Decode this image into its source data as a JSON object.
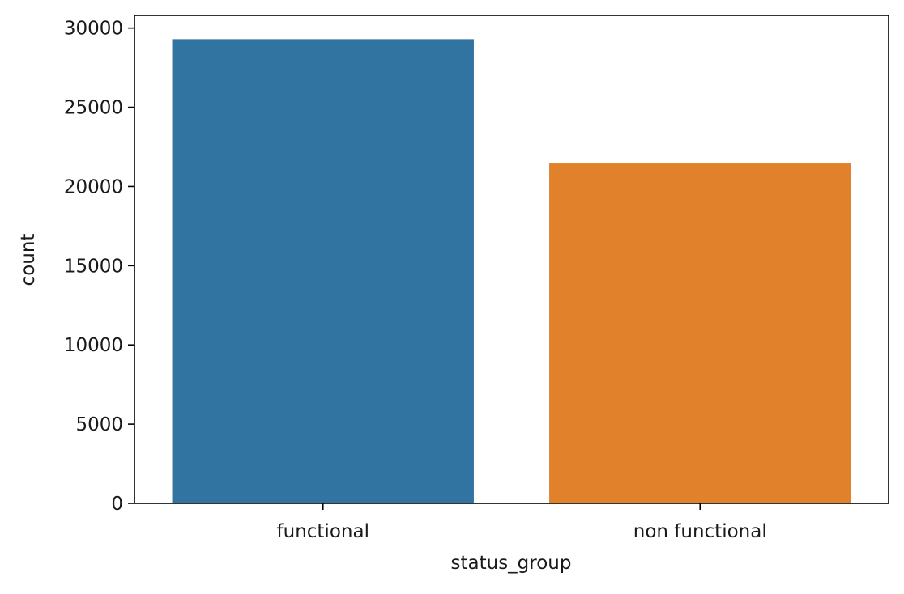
{
  "chart_data": {
    "type": "bar",
    "categories": [
      "functional",
      "non functional"
    ],
    "values": [
      29300,
      21450
    ],
    "colors": [
      "#3274a1",
      "#e1812c"
    ],
    "xlabel": "status_group",
    "ylabel": "count",
    "ylim": [
      0,
      30800
    ],
    "yticks": [
      0,
      5000,
      10000,
      15000,
      20000,
      25000,
      30000
    ],
    "grid": false,
    "legend": "none"
  }
}
